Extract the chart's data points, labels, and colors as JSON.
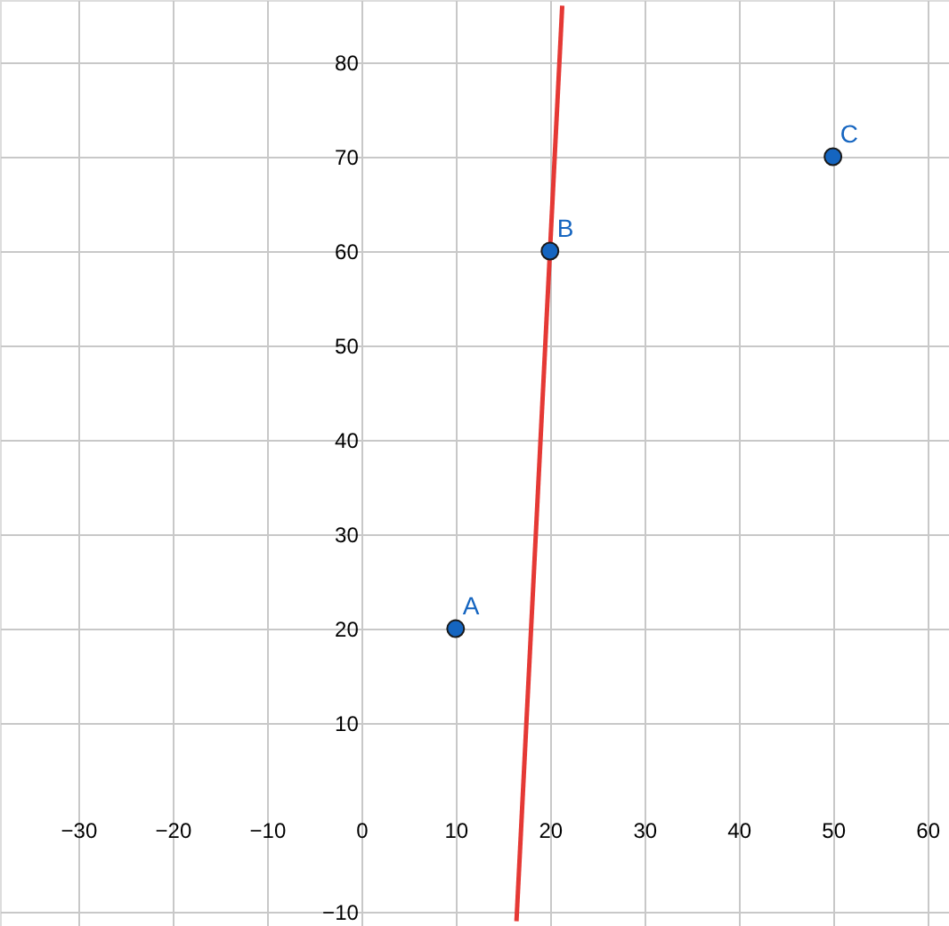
{
  "chart_data": {
    "type": "scatter",
    "xlim": [
      -38.3,
      62.3
    ],
    "ylim": [
      -11.5,
      86.6
    ],
    "xticks": [
      -30,
      -20,
      -10,
      0,
      10,
      20,
      30,
      40,
      50,
      60
    ],
    "yticks": [
      -10,
      10,
      20,
      30,
      40,
      50,
      60,
      70,
      80
    ],
    "grid": true,
    "marker": "circle",
    "series": [
      {
        "type": "line",
        "color": "#e53935",
        "x": [
          16.45,
          21.3
        ],
        "values": [
          -11,
          86
        ],
        "line_style": "solid",
        "marker": "none"
      },
      {
        "color": "#1565c0",
        "x": [
          10,
          20,
          50
        ],
        "values": [
          20,
          60,
          70
        ]
      }
    ],
    "annotations": [
      {
        "text": "A",
        "x": 10,
        "y": 20
      },
      {
        "text": "B",
        "x": 20,
        "y": 60
      },
      {
        "text": "C",
        "x": 50,
        "y": 70
      }
    ]
  }
}
